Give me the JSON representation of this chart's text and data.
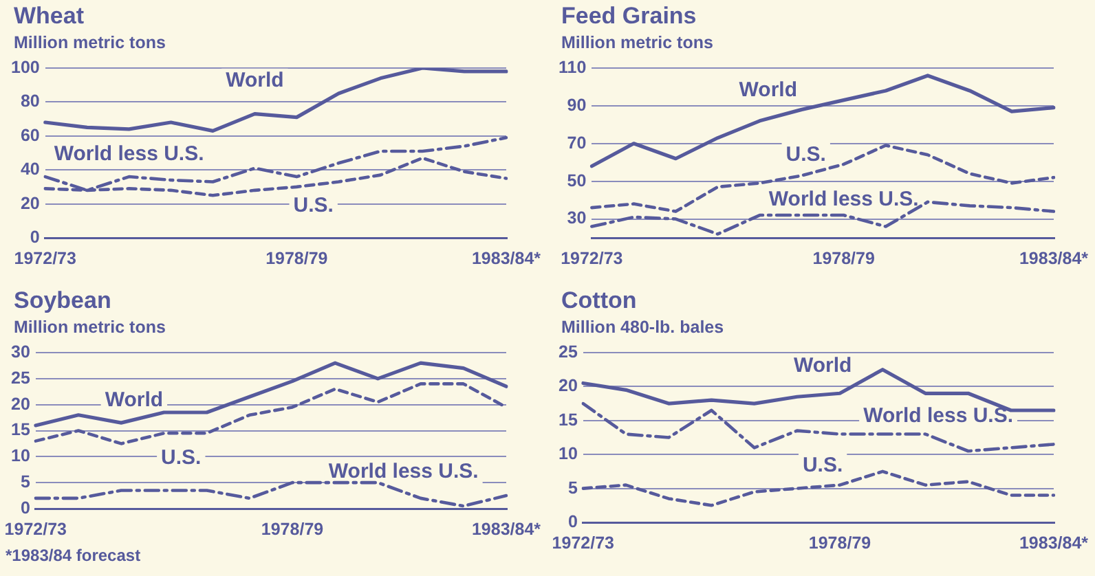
{
  "chart_data": [
    {
      "type": "line",
      "title": "Wheat",
      "ylabel": "Million metric tons",
      "categories": [
        "1972/73",
        null,
        null,
        null,
        null,
        null,
        "1978/79",
        null,
        null,
        null,
        null,
        "1983/84*"
      ],
      "ylim": [
        0,
        100
      ],
      "yticks": [
        0,
        20,
        40,
        60,
        80,
        100
      ],
      "grid": "y",
      "legend": false,
      "marker": "none",
      "series": [
        {
          "name": "World",
          "color": "#565a9c",
          "line_style": "solid",
          "values": [
            68,
            65,
            64,
            68,
            63,
            73,
            71,
            85,
            94,
            100,
            98,
            98
          ]
        },
        {
          "name": "World less U.S.",
          "color": "#565a9c",
          "line_style": "dashdot",
          "values": [
            36,
            28,
            36,
            34,
            33,
            41,
            36,
            44,
            51,
            51,
            54,
            59
          ]
        },
        {
          "name": "U.S.",
          "color": "#565a9c",
          "line_style": "dashed",
          "values": [
            29,
            28,
            29,
            28,
            25,
            28,
            30,
            33,
            37,
            47,
            39,
            35
          ]
        }
      ]
    },
    {
      "type": "line",
      "title": "Feed Grains",
      "ylabel": "Million metric tons",
      "categories": [
        "1972/73",
        null,
        null,
        null,
        null,
        null,
        "1978/79",
        null,
        null,
        null,
        null,
        "1983/84*"
      ],
      "ylim": [
        20,
        110
      ],
      "yticks": [
        30,
        50,
        70,
        90,
        110
      ],
      "grid": "y",
      "legend": false,
      "marker": "none",
      "series": [
        {
          "name": "World",
          "color": "#565a9c",
          "line_style": "solid",
          "values": [
            58,
            70,
            62,
            73,
            82,
            88,
            93,
            98,
            106,
            98,
            87,
            89
          ]
        },
        {
          "name": "U.S.",
          "color": "#565a9c",
          "line_style": "dashed",
          "values": [
            36,
            38,
            34,
            47,
            49,
            53,
            59,
            69,
            64,
            54,
            49,
            52
          ]
        },
        {
          "name": "World less U.S.",
          "color": "#565a9c",
          "line_style": "dashdot",
          "values": [
            26,
            31,
            30,
            22,
            32,
            32,
            32,
            26,
            39,
            37,
            36,
            34
          ]
        }
      ]
    },
    {
      "type": "line",
      "title": "Soybean",
      "ylabel": "Million metric tons",
      "categories": [
        "1972/73",
        null,
        null,
        null,
        null,
        null,
        "1978/79",
        null,
        null,
        null,
        null,
        "1983/84*"
      ],
      "ylim": [
        0,
        30
      ],
      "yticks": [
        0,
        5,
        10,
        15,
        20,
        25,
        30
      ],
      "grid": "y",
      "legend": false,
      "marker": "none",
      "annotations": [
        "*1983/84 forecast"
      ],
      "series": [
        {
          "name": "World",
          "color": "#565a9c",
          "line_style": "solid",
          "values": [
            16,
            18,
            16.5,
            18.5,
            18.5,
            21.5,
            24.5,
            28,
            25,
            28,
            27,
            23.5
          ]
        },
        {
          "name": "U.S.",
          "color": "#565a9c",
          "line_style": "dashed",
          "values": [
            13,
            15,
            12.5,
            14.5,
            14.5,
            18,
            19.5,
            23,
            20.5,
            24,
            24,
            19.5
          ]
        },
        {
          "name": "World less U.S.",
          "color": "#565a9c",
          "line_style": "dashdot",
          "values": [
            2,
            2,
            3.5,
            3.5,
            3.5,
            2,
            5,
            5,
            5,
            2,
            0.5,
            2.5
          ]
        }
      ]
    },
    {
      "type": "line",
      "title": "Cotton",
      "ylabel": "Million 480-lb. bales",
      "categories": [
        "1972/73",
        null,
        null,
        null,
        null,
        null,
        "1978/79",
        null,
        null,
        null,
        null,
        "1983/84*"
      ],
      "ylim": [
        0,
        25
      ],
      "yticks": [
        0,
        5,
        10,
        15,
        20,
        25
      ],
      "grid": "y",
      "legend": false,
      "marker": "none",
      "series": [
        {
          "name": "World",
          "color": "#565a9c",
          "line_style": "solid",
          "values": [
            20.5,
            19.5,
            17.5,
            18,
            17.5,
            18.5,
            19,
            22.5,
            19,
            19,
            16.5,
            16.5
          ]
        },
        {
          "name": "World less U.S.",
          "color": "#565a9c",
          "line_style": "dashdot",
          "values": [
            17.5,
            13,
            12.5,
            16.5,
            11,
            13.5,
            13,
            13,
            13,
            10.5,
            11,
            11.5
          ]
        },
        {
          "name": "U.S.",
          "color": "#565a9c",
          "line_style": "dashed",
          "values": [
            5,
            5.5,
            3.5,
            2.5,
            4.5,
            5,
            5.5,
            7.5,
            5.5,
            6,
            4,
            4
          ]
        }
      ]
    }
  ]
}
